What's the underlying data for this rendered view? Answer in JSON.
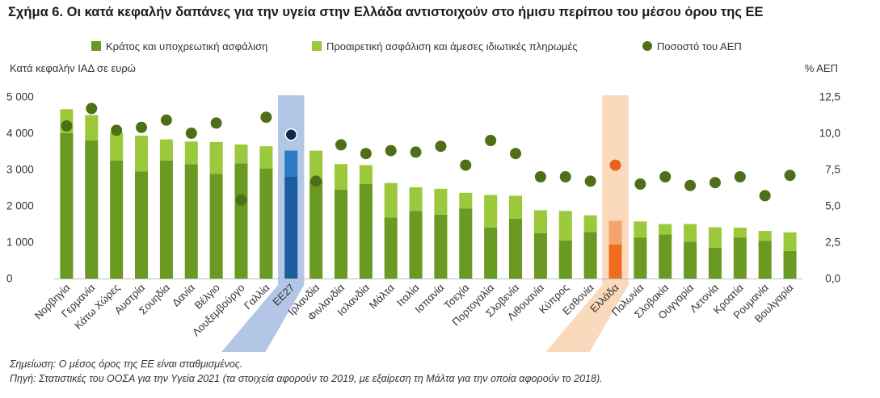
{
  "title": "Σχήμα 6. Οι κατά κεφαλήν δαπάνες για την υγεία στην Ελλάδα αντιστοιχούν στο ήμισυ περίπου του μέσου όρου της ΕΕ",
  "legend": {
    "series1": "Κράτος και υποχρεωτική ασφάλιση",
    "series2": "Προαιρετική ασφάλιση και άμεσες ιδιωτικές πληρωμές",
    "series3": "Ποσοστό του ΑΕΠ"
  },
  "note1": "Σημείωση: Ο μέσος όρος της ΕΕ είναι σταθμισμένος.",
  "note2": "Πηγή: Στατιστικές του ΟΟΣΑ για την Υγεία 2021 (τα στοιχεία αφορούν το 2019, με εξαίρεση τη Μάλτα για την οποία αφορούν το 2018).",
  "colors": {
    "dark_green": "#6a9a22",
    "light_green": "#9cc83c",
    "dot_green": "#4e6f17",
    "eu_dark": "#1c5da0",
    "eu_light": "#2b7cc4",
    "eu_dot": "#0e2a52",
    "eu_band": "#b3c6e6",
    "gr_dark": "#ef6c1e",
    "gr_light": "#f5a56c",
    "gr_dot": "#e8631c",
    "gr_band": "#fad9bd"
  },
  "chart_data": {
    "type": "bar",
    "stacked": true,
    "ylabel": "Κατά κεφαλήν ΙΑΔ σε ευρώ",
    "ylabel_right": "% ΑΕΠ",
    "ylim": [
      0,
      5000
    ],
    "ylim_right": [
      0,
      12.5
    ],
    "yticks": [
      "0",
      "1 000",
      "2 000",
      "3 000",
      "4 000",
      "5 000"
    ],
    "yticks_right": [
      "0,0",
      "2,5",
      "5,0",
      "7,5",
      "10,0",
      "12,5"
    ],
    "grid": false,
    "legend_position": "top",
    "highlight": {
      "eu": "ΕΕ27",
      "greece": "Ελλάδα"
    },
    "categories": [
      "Νορβηγία",
      "Γερμανία",
      "Κάτω Χώρες",
      "Αυστρία",
      "Σουηδία",
      "Δανία",
      "Βέλγιο",
      "Λουξεμβούργο",
      "Γαλλία",
      "ΕΕ27",
      "Ιρλανδία",
      "Φινλανδία",
      "Ισλανδία",
      "Μάλτα",
      "Ιταλία",
      "Ισπανία",
      "Τσεχία",
      "Πορτογαλία",
      "Σλοβενία",
      "Λιθουανία",
      "Κύπρος",
      "Εσθονία",
      "Ελλάδα",
      "Πολωνία",
      "Σλοβακία",
      "Ουγγαρία",
      "Λετονία",
      "Κροατία",
      "Ρουμανία",
      "Βουλγαρία"
    ],
    "series": [
      {
        "name": "Κράτος και υποχρεωτική ασφάλιση",
        "kind": "bar",
        "axis": "left",
        "values": [
          4000,
          3800,
          3250,
          2950,
          3250,
          3150,
          2880,
          3170,
          3030,
          2800,
          2700,
          2450,
          2600,
          1680,
          1860,
          1760,
          1930,
          1400,
          1650,
          1250,
          1050,
          1280,
          940,
          1130,
          1210,
          1010,
          850,
          1130,
          1040,
          760
        ]
      },
      {
        "name": "Προαιρετική ασφάλιση και άμεσες ιδιωτικές πληρωμές",
        "kind": "bar",
        "axis": "left",
        "values": [
          660,
          700,
          770,
          980,
          580,
          620,
          880,
          520,
          610,
          720,
          820,
          700,
          520,
          950,
          650,
          710,
          430,
          900,
          630,
          630,
          810,
          460,
          650,
          440,
          290,
          490,
          560,
          270,
          270,
          510
        ]
      },
      {
        "name": "Ποσοστό του ΑΕΠ",
        "kind": "dot",
        "axis": "right",
        "values": [
          10.5,
          11.7,
          10.2,
          10.4,
          10.9,
          10.0,
          10.7,
          5.4,
          11.1,
          9.9,
          6.7,
          9.2,
          8.6,
          8.8,
          8.7,
          9.1,
          7.8,
          9.5,
          8.6,
          7.0,
          7.0,
          6.7,
          7.8,
          6.5,
          7.0,
          6.4,
          6.6,
          7.0,
          5.7,
          7.1
        ]
      }
    ]
  }
}
